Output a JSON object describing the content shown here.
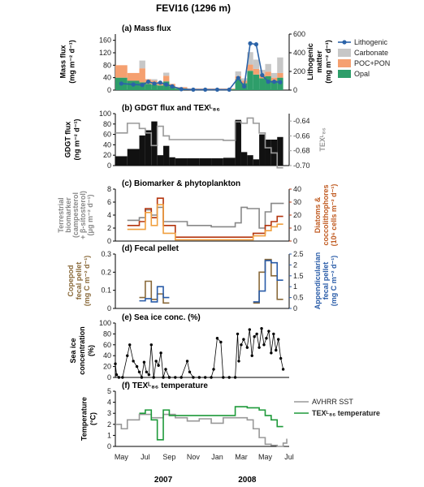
{
  "figure_title": "FEVI16 (1296 m)",
  "x_labels": [
    "May",
    "Jul",
    "Sep",
    "Nov",
    "Jan",
    "Mar",
    "May",
    "Jul"
  ],
  "year_labels": [
    "2007",
    "2008"
  ],
  "chart_data": [
    {
      "type": "bar",
      "title": "(a) Mass flux",
      "ylabel_left": [
        "Mass flux",
        "(mg m⁻² d⁻¹)"
      ],
      "ylabel_right": [
        "Lithogenic",
        "matter",
        "(mg m⁻² d⁻¹)"
      ],
      "ylim_left": [
        0,
        180
      ],
      "ylim_right": [
        0,
        600
      ],
      "yticks_left": [
        0,
        40,
        80,
        120,
        160
      ],
      "yticks_right": [
        0,
        200,
        400,
        600
      ],
      "legend": [
        "Lithogenic",
        "Carbonate",
        "POC+PON",
        "Opal"
      ],
      "colors": {
        "Lithogenic": "#2b63a8",
        "Carbonate": "#c7c7c7",
        "POC+PON": "#f5a070",
        "Opal": "#2e9e6a"
      },
      "periods": [
        [
          0,
          1
        ],
        [
          1,
          2
        ],
        [
          2,
          2.5
        ],
        [
          2.5,
          3
        ],
        [
          3,
          3.5
        ],
        [
          3.5,
          4
        ],
        [
          4,
          4.5
        ],
        [
          4.5,
          5
        ],
        [
          5,
          6
        ],
        [
          6,
          7
        ],
        [
          7,
          8
        ],
        [
          8,
          9
        ],
        [
          9,
          10
        ],
        [
          10,
          10.5
        ],
        [
          10.5,
          11
        ],
        [
          11,
          11.5
        ],
        [
          11.5,
          12
        ],
        [
          12,
          12.5
        ],
        [
          12.5,
          13
        ],
        [
          13,
          13.5
        ],
        [
          13.5,
          14
        ]
      ],
      "series": [
        {
          "name": "Opal",
          "values": [
            40,
            30,
            25,
            20,
            18,
            15,
            28,
            12,
            5,
            3,
            3,
            3,
            3,
            35,
            22,
            62,
            50,
            38,
            45,
            30,
            40
          ]
        },
        {
          "name": "POC+PON",
          "values": [
            40,
            25,
            45,
            15,
            12,
            10,
            18,
            8,
            4,
            2,
            2,
            2,
            2,
            10,
            8,
            20,
            18,
            12,
            14,
            10,
            15
          ]
        },
        {
          "name": "Carbonate",
          "values": [
            0,
            0,
            25,
            0,
            5,
            0,
            10,
            0,
            1,
            0,
            0,
            0,
            0,
            15,
            8,
            40,
            30,
            15,
            25,
            15,
            50
          ]
        },
        {
          "name": "Lithogenic",
          "x": [
            0.5,
            1.5,
            2.25,
            2.75,
            3.25,
            3.75,
            4.25,
            4.75,
            5.5,
            6.5,
            7.5,
            8.5,
            9.5,
            10.25,
            10.75,
            11.25,
            11.75,
            12.25,
            12.75,
            13.25,
            13.75
          ],
          "values": [
            70,
            60,
            55,
            90,
            70,
            80,
            60,
            40,
            10,
            5,
            5,
            5,
            5,
            130,
            40,
            500,
            490,
            160,
            90,
            90,
            85
          ]
        }
      ]
    },
    {
      "type": "bar",
      "title": "(b) GDGT flux and TEXᴸ₈₆",
      "ylabel_left": [
        "GDGT flux",
        "(ng m⁻² d⁻¹)"
      ],
      "ylabel_right": [
        "TEXᴸ₈₆"
      ],
      "ylim_left": [
        0,
        100
      ],
      "ylim_right": [
        -0.7,
        -0.63
      ],
      "yticks_left": [
        0,
        20,
        40,
        60,
        80,
        100
      ],
      "yticks_right": [
        -0.64,
        -0.66,
        -0.68,
        -0.7
      ],
      "periods": [
        [
          0,
          1
        ],
        [
          1,
          2
        ],
        [
          2,
          2.5
        ],
        [
          2.5,
          3
        ],
        [
          3,
          3.5
        ],
        [
          3.5,
          4
        ],
        [
          4,
          4.5
        ],
        [
          4.5,
          5
        ],
        [
          5,
          6
        ],
        [
          6,
          7
        ],
        [
          7,
          8
        ],
        [
          8,
          9
        ],
        [
          9,
          10
        ],
        [
          10,
          10.5
        ],
        [
          10.5,
          11
        ],
        [
          11,
          11.5
        ],
        [
          11.5,
          12
        ],
        [
          12,
          12.5
        ],
        [
          12.5,
          13
        ],
        [
          13,
          13.5
        ],
        [
          13.5,
          14
        ]
      ],
      "series": [
        {
          "name": "GDGT flux",
          "values": [
            18,
            32,
            58,
            68,
            85,
            20,
            38,
            16,
            14,
            14,
            14,
            14,
            15,
            88,
            26,
            20,
            12,
            60,
            50,
            50,
            55
          ]
        },
        {
          "name": "TEX86",
          "values": [
            -0.656,
            -0.643,
            -0.65,
            -0.656,
            -0.673,
            -0.647,
            -0.66,
            -0.665,
            -0.665,
            -0.665,
            -0.665,
            -0.665,
            -0.666,
            -0.641,
            -0.643,
            -0.636,
            -0.643,
            -0.656,
            -0.676,
            -0.683,
            -0.703
          ]
        }
      ]
    },
    {
      "type": "line",
      "title": "(c) Biomarker & phytoplankton",
      "ylabel_left": [
        "Terrestrial",
        "biomarker",
        "(campesterol",
        "+ β-sitosterol)",
        "(μg m⁻² d⁻¹)"
      ],
      "ylabel_right": [
        "Diatoms &",
        "coccolithophores",
        "(10⁶ cells m⁻² d⁻¹)"
      ],
      "ylim_left": [
        0,
        8
      ],
      "ylim_right": [
        0,
        40
      ],
      "yticks_left": [
        0,
        2,
        4,
        6,
        8
      ],
      "yticks_right": [
        0,
        10,
        20,
        30,
        40
      ],
      "colors": {
        "Terrestrial biomarker": "#888888",
        "Diatoms": "#b5350e",
        "Coccolithophores": "#f0a040"
      },
      "series": [
        {
          "name": "Terrestrial biomarker",
          "steps": [
            [
              1,
              3.2
            ],
            [
              2,
              3.6
            ],
            [
              2.5,
              4.8
            ],
            [
              3,
              4.0
            ],
            [
              3.5,
              5.2
            ],
            [
              4,
              3.0
            ],
            [
              5,
              3.0
            ],
            [
              6,
              2.4
            ],
            [
              7,
              2.4
            ],
            [
              8,
              2.2
            ],
            [
              9,
              2.2
            ],
            [
              10,
              2.8
            ],
            [
              10.5,
              5.2
            ],
            [
              11,
              5.0
            ],
            [
              12,
              2.0
            ],
            [
              12.5,
              4.5
            ],
            [
              13,
              5.8
            ],
            [
              14,
              5.7
            ]
          ]
        },
        {
          "name": "Diatoms",
          "steps": [
            [
              1,
              12
            ],
            [
              2,
              15
            ],
            [
              2.5,
              25
            ],
            [
              3,
              18
            ],
            [
              3.5,
              33
            ],
            [
              4,
              12
            ],
            [
              5,
              3
            ],
            [
              6,
              3
            ],
            [
              7,
              3
            ],
            [
              8,
              3
            ],
            [
              9,
              3
            ],
            [
              10,
              3
            ],
            [
              10.5,
              3
            ],
            [
              11,
              3
            ],
            [
              11.5,
              6
            ],
            [
              12,
              6
            ],
            [
              12.5,
              12
            ],
            [
              13,
              15
            ],
            [
              13.5,
              19
            ],
            [
              14,
              19
            ]
          ]
        },
        {
          "name": "Coccolithophores",
          "steps": [
            [
              1,
              9
            ],
            [
              2,
              9
            ],
            [
              2.5,
              22
            ],
            [
              3,
              12
            ],
            [
              3.5,
              28
            ],
            [
              4,
              6
            ],
            [
              5,
              1
            ],
            [
              6,
              1
            ],
            [
              7,
              1
            ],
            [
              8,
              1
            ],
            [
              9,
              1
            ],
            [
              10,
              1
            ],
            [
              10.5,
              1
            ],
            [
              11,
              1
            ],
            [
              11.5,
              4
            ],
            [
              12,
              4
            ],
            [
              12.5,
              8
            ],
            [
              13,
              11
            ],
            [
              13.5,
              13
            ],
            [
              14,
              13
            ]
          ]
        }
      ]
    },
    {
      "type": "line",
      "title": "(d) Fecal pellet",
      "ylabel_left": [
        "Copepod",
        "fecal pellet",
        "(mg C m⁻² d⁻¹)"
      ],
      "ylabel_right": [
        "Appendicularian",
        "fecal pellet",
        "(mg C m⁻² d⁻¹)"
      ],
      "ylim_left": [
        0,
        0.3
      ],
      "ylim_right": [
        0,
        2.5
      ],
      "yticks_left": [
        0,
        0.1,
        0.2,
        0.3
      ],
      "yticks_right": [
        0,
        0.5,
        1,
        1.5,
        2,
        2.5
      ],
      "colors": {
        "Copepod": "#8a6a3a",
        "Appendicularian": "#2a5ca8"
      },
      "series": [
        {
          "name": "Copepod",
          "segments": [
            [
              [
                2,
                0.06
              ],
              [
                2.5,
                0.15
              ],
              [
                3,
                0.05
              ],
              [
                3.5,
                0.08
              ],
              [
                4,
                0.03
              ],
              [
                4.5,
                0.03
              ]
            ],
            [
              [
                11.5,
                0.03
              ],
              [
                12,
                0.2
              ],
              [
                12.5,
                0.27
              ],
              [
                13,
                0.18
              ],
              [
                13.5,
                0.05
              ],
              [
                14,
                0.05
              ]
            ]
          ]
        },
        {
          "name": "Appendicularian",
          "segments": [
            [
              [
                2,
                0.35
              ],
              [
                2.5,
                0.45
              ],
              [
                3,
                0.3
              ],
              [
                3.5,
                1.0
              ],
              [
                4,
                0.5
              ],
              [
                4.5,
                0.5
              ]
            ],
            [
              [
                11.5,
                0.3
              ],
              [
                12,
                0.8
              ],
              [
                12.5,
                2.2
              ],
              [
                13,
                2.1
              ],
              [
                13.5,
                1.3
              ],
              [
                14,
                1.3
              ]
            ]
          ]
        }
      ]
    },
    {
      "type": "scatter",
      "title": "(e) Sea ice conc. (%)",
      "ylabel_left": [
        "Sea ice",
        "concentration",
        "(%)"
      ],
      "ylim_left": [
        0,
        100
      ],
      "yticks_left": [
        0,
        20,
        40,
        60,
        80,
        100
      ],
      "series": [
        {
          "name": "Sea ice concentration",
          "x": [
            0,
            0.1,
            0.3,
            0.6,
            1.0,
            1.2,
            1.5,
            1.8,
            2.0,
            2.2,
            2.4,
            2.6,
            2.8,
            3.0,
            3.2,
            3.4,
            3.6,
            3.8,
            4.0,
            4.2,
            4.5,
            5.0,
            5.5,
            6.0,
            6.2,
            6.5,
            7.0,
            7.5,
            8.0,
            8.2,
            8.5,
            8.8,
            9.0,
            9.5,
            10.0,
            10.2,
            10.3,
            10.5,
            10.7,
            11.0,
            11.2,
            11.4,
            11.6,
            11.8,
            12.0,
            12.2,
            12.4,
            12.6,
            12.8,
            13.0,
            13.2,
            13.4,
            13.6,
            13.8,
            14.0
          ],
          "values": [
            25,
            5,
            0,
            0,
            40,
            60,
            30,
            20,
            10,
            0,
            28,
            10,
            5,
            60,
            0,
            30,
            22,
            45,
            0,
            15,
            0,
            0,
            0,
            30,
            10,
            0,
            0,
            0,
            0,
            15,
            72,
            65,
            0,
            0,
            0,
            80,
            30,
            60,
            70,
            55,
            88,
            40,
            75,
            80,
            55,
            90,
            60,
            72,
            85,
            45,
            80,
            50,
            70,
            35,
            15
          ]
        }
      ]
    },
    {
      "type": "line",
      "title": "(f) TEXᴸ₈₆ temperature",
      "ylabel_left": [
        "Temperature",
        "(°C)"
      ],
      "ylim_left": [
        0,
        5
      ],
      "yticks_left": [
        0,
        1,
        2,
        3,
        4,
        5
      ],
      "legend": [
        "AVHRR SST",
        "TEXᴸ₈₆ temperature"
      ],
      "colors": {
        "AVHRR SST": "#999999",
        "TEX86 temperature": "#1e9a3a"
      },
      "series": [
        {
          "name": "AVHRR SST",
          "steps": [
            [
              0,
              2.0
            ],
            [
              0.5,
              1.6
            ],
            [
              1,
              2.4
            ],
            [
              2,
              2.9
            ],
            [
              3,
              2.6
            ],
            [
              4,
              2.9
            ],
            [
              5,
              2.6
            ],
            [
              6,
              2.3
            ],
            [
              7,
              2.5
            ],
            [
              8,
              2.1
            ],
            [
              9,
              2.6
            ],
            [
              10,
              2.6
            ],
            [
              11,
              2.4
            ],
            [
              11.5,
              1.6
            ],
            [
              12,
              0.8
            ],
            [
              12.5,
              0.2
            ],
            [
              13,
              0.1
            ],
            [
              13.5,
              0.0
            ],
            [
              14,
              0.3
            ],
            [
              14.3,
              0.7
            ]
          ]
        },
        {
          "name": "TEX86 temperature",
          "steps": [
            [
              2,
              3.0
            ],
            [
              2.5,
              3.3
            ],
            [
              3,
              2.4
            ],
            [
              3.5,
              0.6
            ],
            [
              4,
              3.3
            ],
            [
              4.5,
              2.8
            ],
            [
              5,
              2.8
            ],
            [
              6,
              2.8
            ],
            [
              7,
              2.8
            ],
            [
              8,
              2.8
            ],
            [
              9,
              2.8
            ],
            [
              10,
              3.6
            ],
            [
              11,
              3.5
            ],
            [
              12,
              3.3
            ],
            [
              12.5,
              2.8
            ],
            [
              13,
              2.4
            ],
            [
              13.5,
              1.8
            ],
            [
              14,
              1.8
            ]
          ]
        }
      ]
    }
  ]
}
